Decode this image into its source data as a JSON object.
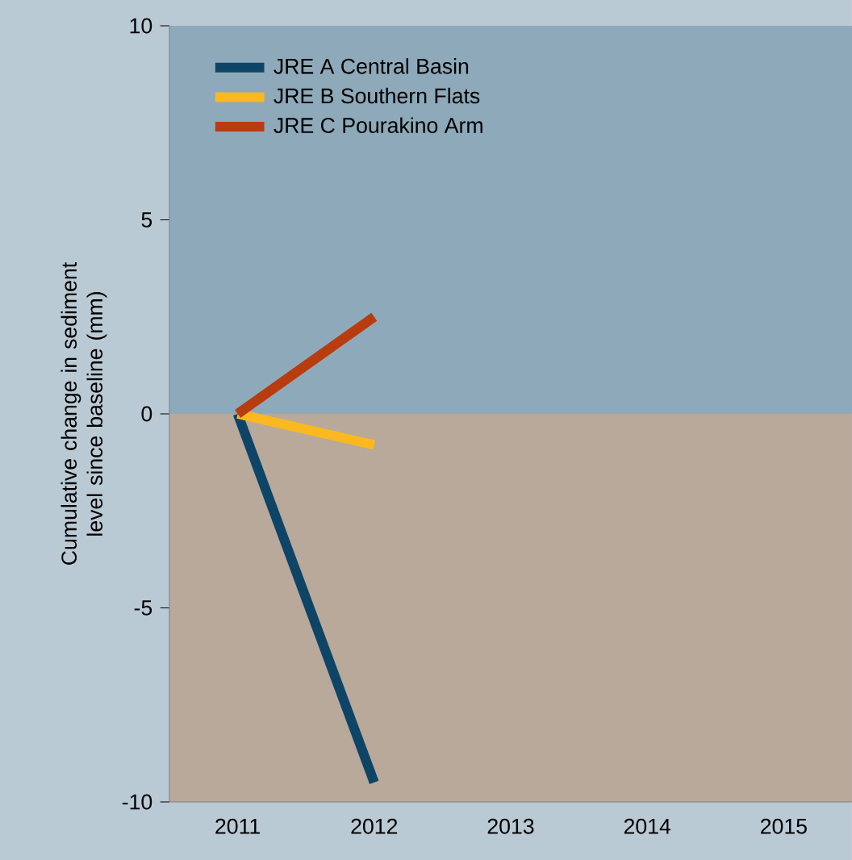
{
  "chart_data": {
    "type": "line",
    "ylabel": "Cumulative change in sediment level since baseline (mm)",
    "x": [
      2011,
      2012
    ],
    "series": [
      {
        "name": "JRE A Central Basin",
        "color": "#0e4466",
        "values": [
          0,
          -9.5
        ]
      },
      {
        "name": "JRE B Southern Flats",
        "color": "#fbb91f",
        "values": [
          0,
          -0.8
        ]
      },
      {
        "name": "JRE C Pourakino Arm",
        "color": "#b83c0e",
        "values": [
          0,
          2.5
        ]
      }
    ],
    "xlim": [
      2010.5,
      2015.5
    ],
    "xticks": [
      2011,
      2012,
      2013,
      2014,
      2015
    ],
    "ylim": [
      -10,
      10
    ],
    "yticks": [
      -10,
      -5,
      0,
      5,
      10
    ],
    "bands": [
      {
        "axis": "y",
        "from": 0,
        "to": 10,
        "color": "#8eaaba"
      },
      {
        "axis": "y",
        "from": -10,
        "to": 0,
        "color": "#b8a99b"
      }
    ],
    "legend": "top left",
    "grid": false,
    "marker": "none",
    "line_style": "solid"
  }
}
